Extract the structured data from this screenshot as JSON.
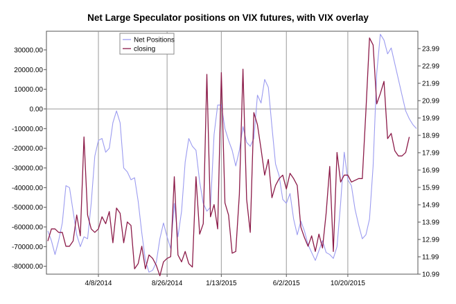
{
  "chart_data": {
    "type": "line",
    "title": "Net Large Speculator positions on VIX futures, with VIX overlay",
    "x_tick_labels": [
      "4/8/2014",
      "8/26/2014",
      "1/13/2015",
      "6/2/2015",
      "10/20/2015"
    ],
    "y_left": {
      "ticks": [
        30000,
        20000,
        10000,
        0,
        -10000,
        -20000,
        -30000,
        -40000,
        -50000,
        -60000,
        -70000,
        -80000
      ],
      "ylim": [
        -84000,
        39500
      ]
    },
    "y_right": {
      "ticks": [
        23.99,
        22.99,
        21.99,
        20.99,
        19.99,
        18.99,
        17.99,
        16.99,
        15.99,
        14.99,
        13.99,
        12.99,
        11.99,
        10.99
      ],
      "ylim": [
        10.99,
        24.99
      ]
    },
    "grid": "vertical lines at labelled dates, horizontal line at 0",
    "legend_position": "top-left",
    "series": [
      {
        "name": "Net Positions",
        "axis": "left",
        "color": "#9b9bf0",
        "values": [
          -62000,
          -67000,
          -74000,
          -67000,
          -58000,
          -39000,
          -40000,
          -52000,
          -64000,
          -70000,
          -65000,
          -66000,
          -48000,
          -24000,
          -16000,
          -15000,
          -22000,
          -20000,
          -7000,
          -1000,
          -7000,
          -30000,
          -32000,
          -36000,
          -35000,
          -47000,
          -63000,
          -77000,
          -83000,
          -82000,
          -78000,
          -66000,
          -58000,
          -65000,
          -71000,
          -48000,
          -65000,
          -52000,
          -27000,
          -15000,
          -19000,
          -21000,
          -37000,
          -48000,
          -52000,
          -50000,
          -13000,
          2000,
          2000,
          -10000,
          -16000,
          -21000,
          -29000,
          -21000,
          -9000,
          -17000,
          -19000,
          -15000,
          7000,
          3000,
          15000,
          11000,
          -9000,
          -28000,
          -34000,
          -46000,
          -48000,
          -43000,
          -56000,
          -64000,
          -57000,
          -62000,
          -69000,
          -73000,
          -77000,
          -72000,
          -67000,
          -73000,
          -74000,
          -76000,
          -70000,
          -48000,
          -22000,
          -36000,
          -39000,
          -51000,
          -59000,
          -66000,
          -64000,
          -56000,
          -29000,
          18000,
          38000,
          35000,
          28000,
          31000,
          23000,
          15000,
          7000,
          -1000,
          -5000,
          -8000,
          -10000
        ]
      },
      {
        "name": "closing",
        "axis": "right",
        "color": "#8b1a48",
        "values": [
          12.9,
          13.6,
          13.6,
          13.4,
          13.4,
          12.6,
          12.6,
          12.9,
          14.4,
          13.2,
          18.9,
          14.4,
          13.6,
          13.4,
          13.6,
          14.3,
          13.9,
          14.6,
          12.8,
          14.8,
          14.5,
          12.8,
          14.0,
          13.8,
          11.3,
          11.6,
          12.6,
          11.3,
          12.1,
          11.9,
          11.5,
          10.9,
          11.7,
          11.9,
          12.0,
          16.6,
          12.1,
          11.7,
          12.3,
          11.6,
          11.4,
          16.6,
          13.3,
          13.9,
          22.5,
          14.3,
          15.0,
          13.6,
          22.6,
          15.1,
          14.4,
          12.2,
          12.3,
          15.6,
          22.8,
          15.3,
          13.4,
          20.3,
          19.6,
          18.2,
          16.7,
          17.6,
          15.4,
          16.1,
          16.5,
          16.7,
          15.9,
          16.8,
          16.5,
          16.1,
          13.7,
          13.1,
          12.6,
          13.2,
          12.3,
          13.3,
          12.5,
          14.5,
          17.2,
          12.3,
          18.0,
          16.3,
          16.7,
          16.7,
          16.3,
          16.4,
          16.5,
          16.5,
          20.4,
          24.6,
          24.2,
          20.8,
          21.4,
          22.1,
          18.8,
          19.1,
          18.1,
          17.8,
          17.8,
          18.0,
          18.9
        ]
      }
    ]
  }
}
